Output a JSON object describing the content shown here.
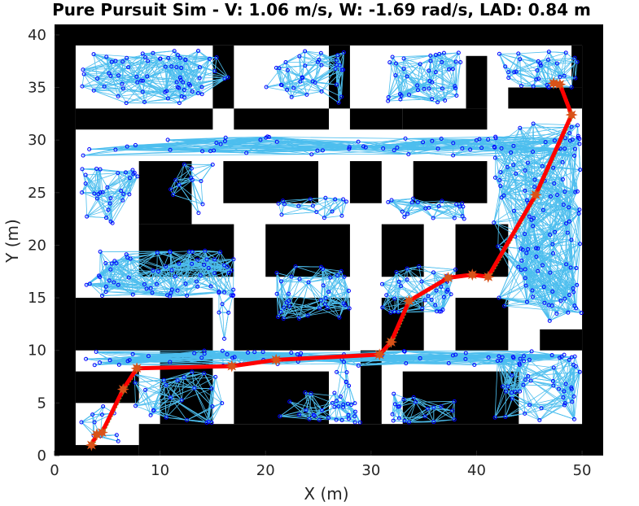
{
  "chart_data": {
    "type": "scatter",
    "title": "Pure Pursuit Sim - V: 1.06 m/s, W: -1.69 rad/s, LAD: 0.84 m",
    "xlabel": "X (m)",
    "ylabel": "Y (m)",
    "xlim": [
      0,
      52
    ],
    "ylim": [
      0,
      41
    ],
    "xticks": [
      "0",
      "10",
      "20",
      "30",
      "40",
      "50"
    ],
    "yticks": [
      "0",
      "5",
      "10",
      "15",
      "20",
      "25",
      "30",
      "35",
      "40"
    ],
    "grid": false,
    "colors": {
      "obstacles": "#000000",
      "free_space": "#ffffff",
      "roadmap_edges": "#4dbeee",
      "roadmap_nodes": "#0000ff",
      "path": "#ff0000",
      "waypoints": "#d95319",
      "robot_trace": "#77ac30"
    },
    "map_extent": {
      "x": [
        0,
        52
      ],
      "y": [
        0,
        41
      ]
    },
    "walls": [
      [
        0,
        0,
        2,
        41
      ],
      [
        50,
        0,
        52,
        41
      ],
      [
        0,
        39,
        52,
        41
      ],
      [
        0,
        0,
        8,
        1
      ],
      [
        2,
        31,
        15,
        33
      ],
      [
        17,
        31,
        26,
        33
      ],
      [
        28,
        31,
        33,
        33
      ],
      [
        33,
        31,
        41,
        33
      ],
      [
        43,
        33,
        50,
        35
      ],
      [
        15,
        33,
        17,
        39
      ],
      [
        26,
        33,
        28,
        39
      ],
      [
        39,
        33,
        41,
        38
      ],
      [
        49,
        35,
        50,
        39
      ],
      [
        8,
        22,
        13,
        28
      ],
      [
        16,
        24,
        25,
        28
      ],
      [
        28,
        24,
        31,
        28
      ],
      [
        34,
        24,
        41,
        28
      ],
      [
        8,
        17,
        17,
        22
      ],
      [
        20,
        17,
        28,
        22
      ],
      [
        31,
        17,
        35,
        22
      ],
      [
        38,
        17,
        43,
        22
      ],
      [
        2,
        10,
        15,
        15
      ],
      [
        17,
        10,
        28,
        15
      ],
      [
        31,
        10,
        35,
        15
      ],
      [
        38,
        10,
        43,
        15
      ],
      [
        46,
        10,
        50,
        12
      ],
      [
        2,
        5,
        8,
        8
      ],
      [
        10,
        3,
        15,
        10
      ],
      [
        17,
        3,
        26,
        8
      ],
      [
        29,
        3,
        31,
        10
      ],
      [
        33,
        3,
        44,
        8
      ],
      [
        8,
        0,
        52,
        3
      ]
    ],
    "path": [
      [
        3.5,
        1.0
      ],
      [
        4.0,
        2.0
      ],
      [
        4.5,
        2.2
      ],
      [
        6.5,
        6.3
      ],
      [
        7.8,
        8.3
      ],
      [
        16.8,
        8.5
      ],
      [
        21.0,
        9.1
      ],
      [
        30.8,
        9.6
      ],
      [
        31.9,
        10.8
      ],
      [
        33.6,
        14.7
      ],
      [
        37.3,
        16.9
      ],
      [
        39.6,
        17.2
      ],
      [
        41.1,
        17.0
      ],
      [
        45.6,
        24.8
      ],
      [
        49.0,
        32.4
      ],
      [
        47.9,
        35.3
      ],
      [
        47.3,
        35.4
      ]
    ],
    "waypoints": [
      [
        3.5,
        1.0
      ],
      [
        4.0,
        2.0
      ],
      [
        4.5,
        2.2
      ],
      [
        6.5,
        6.3
      ],
      [
        7.8,
        8.3
      ],
      [
        16.8,
        8.5
      ],
      [
        21.0,
        9.1
      ],
      [
        30.8,
        9.6
      ],
      [
        31.9,
        10.8
      ],
      [
        33.6,
        14.7
      ],
      [
        37.3,
        16.9
      ],
      [
        39.6,
        17.2
      ],
      [
        41.1,
        17.0
      ],
      [
        45.6,
        24.8
      ],
      [
        49.0,
        32.4
      ],
      [
        47.9,
        35.3
      ],
      [
        47.3,
        35.4
      ]
    ],
    "roadmap_regions": [
      {
        "x": [
          2.5,
          16.5
        ],
        "y": [
          33.5,
          38.5
        ],
        "count": 70
      },
      {
        "x": [
          20,
          27.5
        ],
        "y": [
          33.5,
          38.5
        ],
        "count": 35
      },
      {
        "x": [
          31.5,
          38.5
        ],
        "y": [
          33.5,
          38.5
        ],
        "count": 40
      },
      {
        "x": [
          41.5,
          50
        ],
        "y": [
          35,
          38.5
        ],
        "count": 30
      },
      {
        "x": [
          2.5,
          50
        ],
        "y": [
          28.5,
          30.5
        ],
        "count": 55
      },
      {
        "x": [
          2.5,
          8
        ],
        "y": [
          22,
          28
        ],
        "count": 30
      },
      {
        "x": [
          11,
          16
        ],
        "y": [
          23,
          28
        ],
        "count": 12
      },
      {
        "x": [
          21,
          28
        ],
        "y": [
          22.5,
          24.5
        ],
        "count": 15
      },
      {
        "x": [
          31,
          39
        ],
        "y": [
          22.5,
          24.5
        ],
        "count": 20
      },
      {
        "x": [
          41.5,
          50
        ],
        "y": [
          12.5,
          32
        ],
        "count": 110
      },
      {
        "x": [
          3,
          17
        ],
        "y": [
          15,
          19.5
        ],
        "count": 65
      },
      {
        "x": [
          21,
          28
        ],
        "y": [
          13,
          18
        ],
        "count": 35
      },
      {
        "x": [
          31,
          38
        ],
        "y": [
          13,
          18
        ],
        "count": 35
      },
      {
        "x": [
          2.5,
          50
        ],
        "y": [
          8.5,
          10
        ],
        "count": 60
      },
      {
        "x": [
          15.5,
          17
        ],
        "y": [
          10,
          17
        ],
        "count": 8
      },
      {
        "x": [
          26.5,
          28.5
        ],
        "y": [
          3,
          10
        ],
        "count": 12
      },
      {
        "x": [
          2.5,
          7
        ],
        "y": [
          0.5,
          5
        ],
        "count": 10
      },
      {
        "x": [
          7.5,
          16.5
        ],
        "y": [
          3,
          8
        ],
        "count": 25
      },
      {
        "x": [
          21,
          29
        ],
        "y": [
          3,
          6
        ],
        "count": 25
      },
      {
        "x": [
          32,
          38
        ],
        "y": [
          3,
          6
        ],
        "count": 20
      },
      {
        "x": [
          41,
          50
        ],
        "y": [
          3,
          9.5
        ],
        "count": 45
      }
    ]
  }
}
